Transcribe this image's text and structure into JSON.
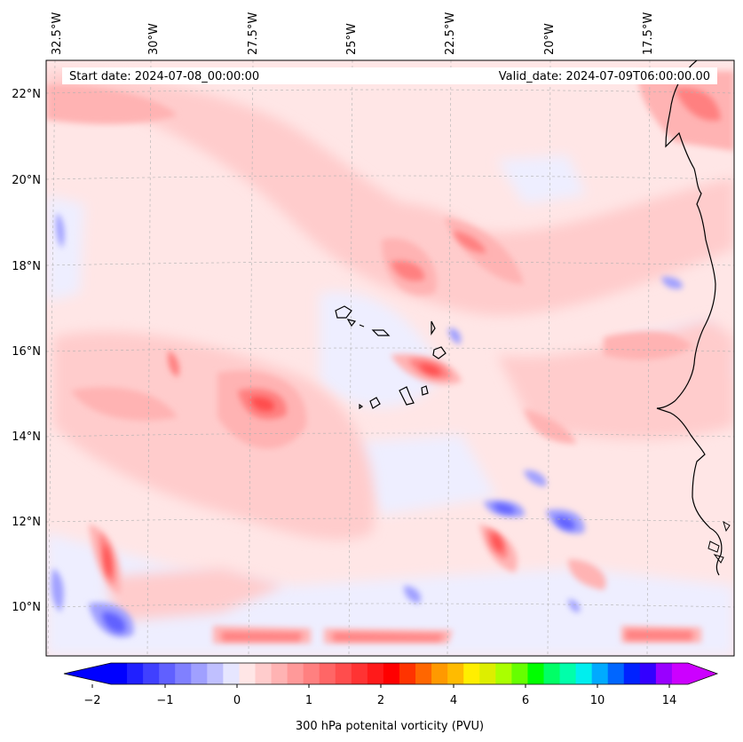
{
  "map": {
    "start_label": "Start date: 2024-07-08_00:00:00",
    "valid_label": "Valid_date: 2024-07-09T06:00:00.00",
    "lon_labels": [
      "32.5°W",
      "30°W",
      "27.5°W",
      "25°W",
      "22.5°W",
      "20°W",
      "17.5°W"
    ],
    "lat_labels": [
      "22°N",
      "20°N",
      "18°N",
      "16°N",
      "14°N",
      "12°N",
      "10°N"
    ],
    "grid_lines": true,
    "coastline_color": "#000000"
  },
  "colorbar": {
    "label": "300 hPa potenital vorticity (PVU)",
    "ticks": [
      "−2",
      "−1",
      "0",
      "1",
      "2",
      "4",
      "6",
      "10",
      "14"
    ],
    "colors": [
      "#0000ff",
      "#2020ff",
      "#4040ff",
      "#6060ff",
      "#8080ff",
      "#a0a0ff",
      "#c0c0ff",
      "#e6e6ff",
      "#ffe6e6",
      "#ffcccc",
      "#ffb3b3",
      "#ff9999",
      "#ff8080",
      "#ff6666",
      "#ff4d4d",
      "#ff3333",
      "#ff1a1a",
      "#ff0000",
      "#ff3300",
      "#ff6600",
      "#ff9900",
      "#ffbb00",
      "#ffee00",
      "#ddee00",
      "#aaff00",
      "#66ff00",
      "#00ff00",
      "#00ff66",
      "#00ffaa",
      "#00eeee",
      "#00aaff",
      "#0066ff",
      "#0022ff",
      "#3300ff",
      "#9900ff",
      "#cc00ff"
    ],
    "under_color": "#0000ff",
    "over_color": "#cc00ff"
  }
}
